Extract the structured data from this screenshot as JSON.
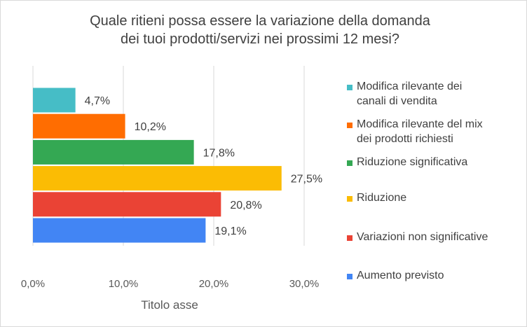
{
  "chart_data": {
    "type": "bar",
    "orientation": "horizontal",
    "title": "Quale ritieni possa essere la variazione della domanda dei tuoi prodotti/servizi nei prossimi 12 mesi?",
    "title_lines": [
      "Quale ritieni possa essere la variazione della domanda",
      "dei tuoi prodotti/servizi nei prossimi 12 mesi?"
    ],
    "xlabel": "Titolo asse",
    "ylabel": "",
    "xlim": [
      0,
      30
    ],
    "xticks": [
      {
        "value": 0,
        "label": "0,0%"
      },
      {
        "value": 10,
        "label": "10,0%"
      },
      {
        "value": 20,
        "label": "20,0%"
      },
      {
        "value": 30,
        "label": "30,0%"
      }
    ],
    "grid": "vertical",
    "legend_position": "right",
    "series": [
      {
        "name": "Modifica rilevante dei canali di vendita",
        "legend_lines": [
          "Modifica rilevante dei",
          "canali di vendita"
        ],
        "value": 4.7,
        "label": "4,7%",
        "color": "#46bdc6"
      },
      {
        "name": "Modifica rilevante del mix dei prodotti richiesti",
        "legend_lines": [
          "Modifica rilevante del mix",
          "dei prodotti richiesti"
        ],
        "value": 10.2,
        "label": "10,2%",
        "color": "#ff6d01"
      },
      {
        "name": "Riduzione significativa",
        "legend_lines": [
          "Riduzione significativa"
        ],
        "value": 17.8,
        "label": "17,8%",
        "color": "#34a853"
      },
      {
        "name": "Riduzione",
        "legend_lines": [
          "Riduzione"
        ],
        "value": 27.5,
        "label": "27,5%",
        "color": "#fbbc04"
      },
      {
        "name": "Variazioni non significative",
        "legend_lines": [
          "Variazioni non significative"
        ],
        "value": 20.8,
        "label": "20,8%",
        "color": "#ea4335"
      },
      {
        "name": "Aumento previsto",
        "legend_lines": [
          "Aumento previsto"
        ],
        "value": 19.1,
        "label": "19,1%",
        "color": "#4285f4"
      }
    ]
  }
}
